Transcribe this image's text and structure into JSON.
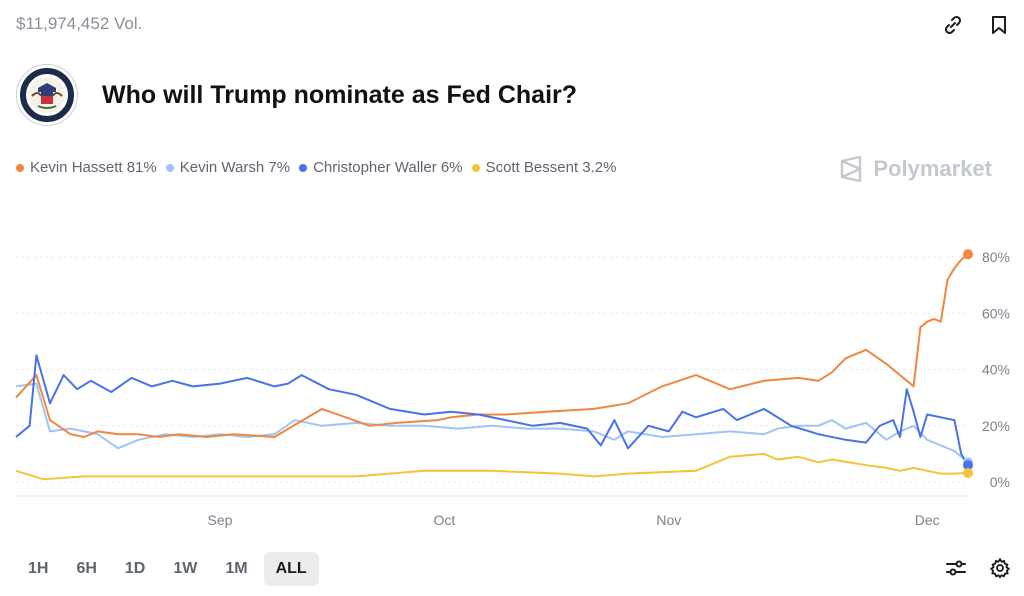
{
  "header": {
    "volume": "$11,974,452 Vol.",
    "title": "Who will Trump nominate as Fed Chair?",
    "brand": "Polymarket",
    "icons": [
      "link-icon",
      "bookmark-icon"
    ]
  },
  "legend": [
    {
      "label": "Kevin Hassett 81%",
      "color": "#f0873f"
    },
    {
      "label": "Kevin Warsh 7%",
      "color": "#9ec5f5"
    },
    {
      "label": "Christopher Waller 6%",
      "color": "#4a72e8"
    },
    {
      "label": "Scott Bessent 3.2%",
      "color": "#f2c437"
    }
  ],
  "time_ranges": [
    "1H",
    "6H",
    "1D",
    "1W",
    "1M",
    "ALL"
  ],
  "active_range": "ALL",
  "chart_data": {
    "type": "line",
    "x_ticks": [
      "Sep",
      "Oct",
      "Nov",
      "Dec"
    ],
    "y_ticks": [
      "0%",
      "20%",
      "40%",
      "60%",
      "80%"
    ],
    "ylim": [
      0,
      85
    ],
    "grid": "horizontal dotted",
    "series": [
      {
        "name": "Kevin Hassett",
        "color": "#f0873f",
        "x": [
          0,
          3,
          5,
          8,
          10,
          12,
          15,
          18,
          21,
          24,
          28,
          32,
          38,
          45,
          52,
          56,
          62,
          64,
          68,
          72,
          78,
          85,
          90,
          95,
          100,
          105,
          110,
          115,
          118,
          120,
          122,
          125,
          128,
          130,
          132,
          133,
          134,
          135,
          136,
          137,
          138,
          139,
          140
        ],
        "values": [
          30,
          38,
          22,
          17,
          16,
          18,
          17,
          17,
          16,
          17,
          16,
          17,
          16,
          26,
          20,
          21,
          22,
          23,
          24,
          24,
          25,
          26,
          28,
          34,
          38,
          33,
          36,
          37,
          36,
          39,
          44,
          47,
          42,
          38,
          34,
          55,
          57,
          58,
          57,
          72,
          76,
          79,
          81
        ]
      },
      {
        "name": "Kevin Warsh",
        "color": "#9ec5f5",
        "x": [
          0,
          3,
          5,
          8,
          10,
          12,
          15,
          18,
          22,
          26,
          30,
          34,
          38,
          41,
          45,
          50,
          55,
          60,
          65,
          70,
          75,
          80,
          85,
          88,
          90,
          95,
          100,
          105,
          110,
          112,
          115,
          118,
          120,
          122,
          125,
          128,
          130,
          132,
          134,
          136,
          138,
          140
        ],
        "values": [
          34,
          35,
          18,
          19,
          18,
          17,
          12,
          15,
          17,
          16,
          17,
          16,
          17,
          22,
          20,
          21,
          20,
          20,
          19,
          20,
          19,
          19,
          18,
          15,
          18,
          16,
          17,
          18,
          17,
          19,
          20,
          20,
          22,
          19,
          21,
          15,
          18,
          20,
          15,
          13,
          11,
          7
        ]
      },
      {
        "name": "Christopher Waller",
        "color": "#4a72e8",
        "x": [
          0,
          2,
          3,
          5,
          7,
          9,
          11,
          14,
          17,
          20,
          23,
          26,
          30,
          34,
          38,
          40,
          42,
          46,
          50,
          55,
          60,
          64,
          68,
          72,
          76,
          80,
          84,
          86,
          88,
          90,
          93,
          96,
          98,
          100,
          104,
          106,
          110,
          114,
          118,
          122,
          125,
          127,
          129,
          130,
          131,
          132,
          133,
          134,
          136,
          138,
          139,
          140
        ],
        "values": [
          16,
          20,
          45,
          28,
          38,
          33,
          36,
          32,
          37,
          34,
          36,
          34,
          35,
          37,
          34,
          35,
          38,
          33,
          31,
          26,
          24,
          25,
          24,
          22,
          20,
          21,
          19,
          13,
          22,
          12,
          20,
          18,
          25,
          23,
          26,
          22,
          26,
          20,
          17,
          15,
          14,
          20,
          22,
          16,
          33,
          25,
          16,
          24,
          23,
          22,
          10,
          6
        ]
      },
      {
        "name": "Scott Bessent",
        "color": "#f2c437",
        "x": [
          0,
          4,
          10,
          20,
          30,
          40,
          50,
          60,
          70,
          80,
          85,
          90,
          100,
          105,
          110,
          112,
          115,
          118,
          120,
          125,
          128,
          130,
          132,
          134,
          136,
          138,
          140
        ],
        "values": [
          4,
          1,
          2,
          2,
          2,
          2,
          2,
          4,
          4,
          3,
          2,
          3,
          4,
          9,
          10,
          8,
          9,
          7,
          8,
          6,
          5,
          4,
          5,
          4,
          3,
          3,
          3.2
        ]
      }
    ]
  }
}
